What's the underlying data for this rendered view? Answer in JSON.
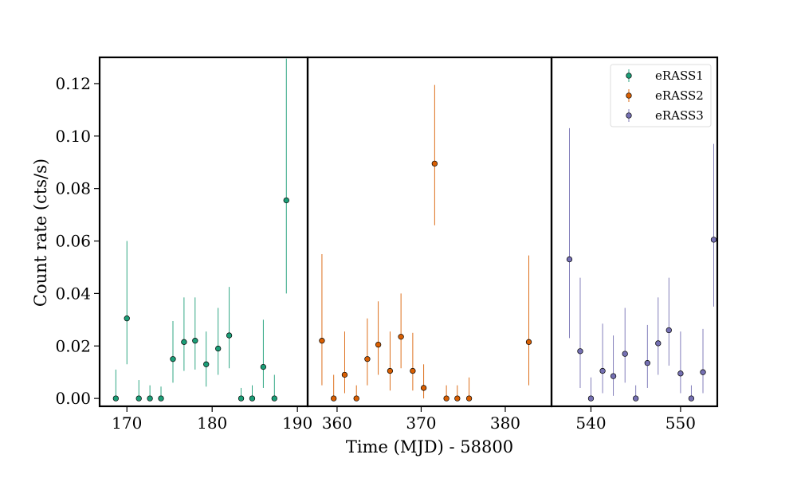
{
  "chart_data": {
    "type": "scatter",
    "xlabel": "Time (MJD) - 58800",
    "ylabel": "Count rate (cts/s)",
    "ylim": [
      -0.003,
      0.13
    ],
    "yticks": [
      0.0,
      0.02,
      0.04,
      0.06,
      0.08,
      0.1,
      0.12
    ],
    "ytick_labels": [
      "0.00",
      "0.02",
      "0.04",
      "0.06",
      "0.08",
      "0.10",
      "0.12"
    ],
    "legend_position": "top-right",
    "grid": false,
    "panels": [
      {
        "xlim": [
          166.8,
          191.2
        ],
        "xticks": [
          170,
          180,
          190
        ],
        "xtick_labels": [
          "170",
          "180",
          "190"
        ]
      },
      {
        "xlim": [
          356.5,
          385.5
        ],
        "xticks": [
          360,
          370,
          380
        ],
        "xtick_labels": [
          "360",
          "370",
          "380"
        ]
      },
      {
        "xlim": [
          535.6,
          554.1
        ],
        "xticks": [
          540,
          550
        ],
        "xtick_labels": [
          "540",
          "550"
        ]
      }
    ],
    "series": [
      {
        "name": "eRASS1",
        "panel": 0,
        "color": "#1b9e77",
        "points": [
          {
            "x": 168.7,
            "y": 0.0,
            "lo": 0.0,
            "hi": 0.011
          },
          {
            "x": 170.0,
            "y": 0.0305,
            "lo": 0.013,
            "hi": 0.06
          },
          {
            "x": 171.4,
            "y": 0.0,
            "lo": 0.0,
            "hi": 0.007
          },
          {
            "x": 172.7,
            "y": 0.0,
            "lo": 0.0,
            "hi": 0.005
          },
          {
            "x": 174.0,
            "y": 0.0,
            "lo": 0.0,
            "hi": 0.0045
          },
          {
            "x": 175.4,
            "y": 0.015,
            "lo": 0.006,
            "hi": 0.0295
          },
          {
            "x": 176.7,
            "y": 0.0215,
            "lo": 0.0105,
            "hi": 0.0385
          },
          {
            "x": 178.0,
            "y": 0.022,
            "lo": 0.011,
            "hi": 0.0385
          },
          {
            "x": 179.3,
            "y": 0.013,
            "lo": 0.0045,
            "hi": 0.0255
          },
          {
            "x": 180.7,
            "y": 0.019,
            "lo": 0.009,
            "hi": 0.0345
          },
          {
            "x": 182.0,
            "y": 0.024,
            "lo": 0.0115,
            "hi": 0.0425
          },
          {
            "x": 183.4,
            "y": 0.0,
            "lo": 0.0,
            "hi": 0.004
          },
          {
            "x": 184.7,
            "y": 0.0,
            "lo": 0.0,
            "hi": 0.005
          },
          {
            "x": 186.0,
            "y": 0.012,
            "lo": 0.004,
            "hi": 0.03
          },
          {
            "x": 187.3,
            "y": 0.0,
            "lo": 0.0,
            "hi": 0.009
          },
          {
            "x": 188.7,
            "y": 0.0755,
            "lo": 0.04,
            "hi": 0.1295
          }
        ]
      },
      {
        "name": "eRASS2",
        "panel": 1,
        "color": "#d95f02",
        "points": [
          {
            "x": 358.2,
            "y": 0.022,
            "lo": 0.005,
            "hi": 0.055
          },
          {
            "x": 359.6,
            "y": 0.0,
            "lo": 0.0,
            "hi": 0.009
          },
          {
            "x": 360.9,
            "y": 0.009,
            "lo": 0.002,
            "hi": 0.0255
          },
          {
            "x": 362.3,
            "y": 0.0,
            "lo": 0.0,
            "hi": 0.005
          },
          {
            "x": 363.6,
            "y": 0.015,
            "lo": 0.005,
            "hi": 0.0305
          },
          {
            "x": 364.9,
            "y": 0.0205,
            "lo": 0.009,
            "hi": 0.037
          },
          {
            "x": 366.3,
            "y": 0.0105,
            "lo": 0.003,
            "hi": 0.0255
          },
          {
            "x": 367.6,
            "y": 0.0235,
            "lo": 0.0115,
            "hi": 0.04
          },
          {
            "x": 369.0,
            "y": 0.0105,
            "lo": 0.003,
            "hi": 0.025
          },
          {
            "x": 370.3,
            "y": 0.004,
            "lo": 0.0,
            "hi": 0.013
          },
          {
            "x": 371.6,
            "y": 0.0895,
            "lo": 0.066,
            "hi": 0.1195
          },
          {
            "x": 373.0,
            "y": 0.0,
            "lo": 0.0,
            "hi": 0.005
          },
          {
            "x": 374.3,
            "y": 0.0,
            "lo": 0.0,
            "hi": 0.005
          },
          {
            "x": 375.7,
            "y": 0.0,
            "lo": 0.0,
            "hi": 0.008
          },
          {
            "x": 382.8,
            "y": 0.0215,
            "lo": 0.005,
            "hi": 0.0545
          }
        ]
      },
      {
        "name": "eRASS3",
        "panel": 2,
        "color": "#7570b3",
        "points": [
          {
            "x": 537.6,
            "y": 0.053,
            "lo": 0.023,
            "hi": 0.103
          },
          {
            "x": 538.8,
            "y": 0.018,
            "lo": 0.004,
            "hi": 0.046
          },
          {
            "x": 540.0,
            "y": 0.0,
            "lo": 0.0,
            "hi": 0.008
          },
          {
            "x": 541.3,
            "y": 0.0105,
            "lo": 0.002,
            "hi": 0.0285
          },
          {
            "x": 542.5,
            "y": 0.0085,
            "lo": 0.001,
            "hi": 0.024
          },
          {
            "x": 543.8,
            "y": 0.017,
            "lo": 0.006,
            "hi": 0.0345
          },
          {
            "x": 545.0,
            "y": 0.0,
            "lo": 0.0,
            "hi": 0.005
          },
          {
            "x": 546.3,
            "y": 0.0135,
            "lo": 0.004,
            "hi": 0.028
          },
          {
            "x": 547.5,
            "y": 0.021,
            "lo": 0.009,
            "hi": 0.0385
          },
          {
            "x": 548.7,
            "y": 0.026,
            "lo": 0.0125,
            "hi": 0.046
          },
          {
            "x": 550.0,
            "y": 0.0095,
            "lo": 0.002,
            "hi": 0.0255
          },
          {
            "x": 551.2,
            "y": 0.0,
            "lo": 0.0,
            "hi": 0.005
          },
          {
            "x": 552.5,
            "y": 0.01,
            "lo": 0.002,
            "hi": 0.0265
          },
          {
            "x": 553.7,
            "y": 0.0605,
            "lo": 0.035,
            "hi": 0.097
          }
        ]
      }
    ]
  }
}
